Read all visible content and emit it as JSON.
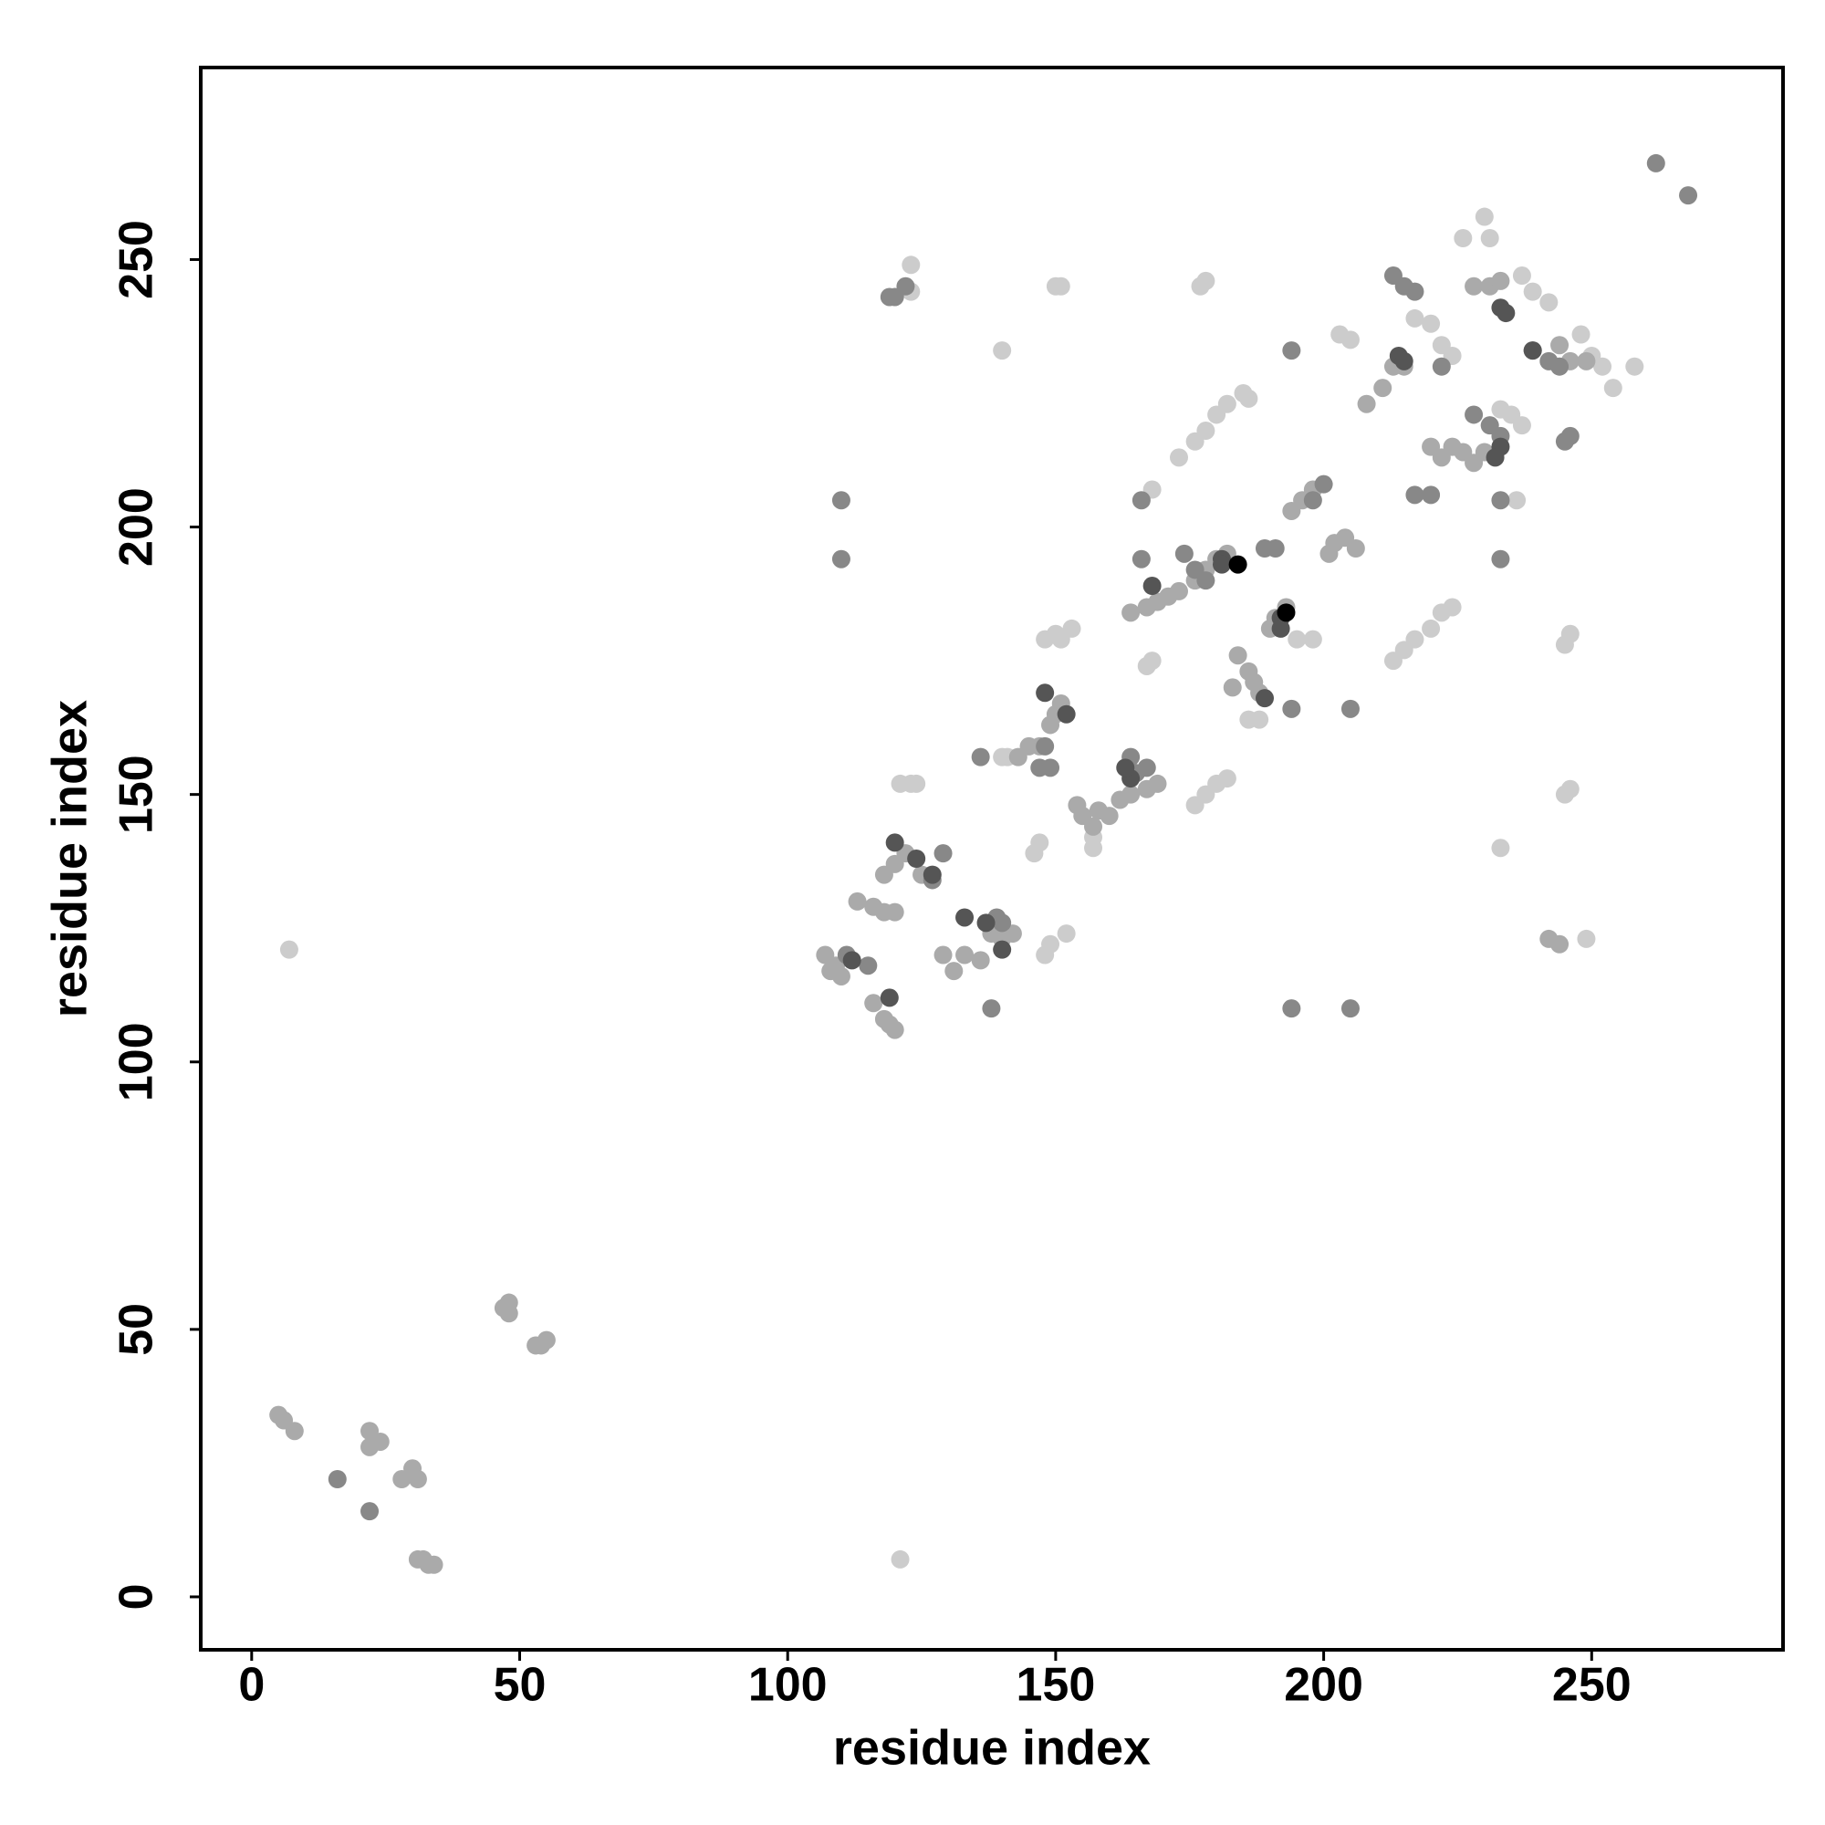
{
  "chart_data": {
    "type": "scatter",
    "x_label": "residue index",
    "y_label": "residue index",
    "xlim": [
      -9.5,
      285.7
    ],
    "ylim": [
      -9.9,
      285.9
    ],
    "xticks": [
      0,
      50,
      100,
      150,
      200,
      250
    ],
    "yticks": [
      0,
      50,
      100,
      150,
      200,
      250
    ],
    "series": [
      {
        "color": "#cccccc",
        "x": [
          7,
          121,
          140,
          151,
          150,
          178,
          177,
          233,
          230,
          231,
          226,
          258,
          254,
          249,
          246,
          245,
          246,
          245,
          123,
          123,
          121,
          123,
          124,
          152,
          149,
          148,
          146,
          147,
          148,
          150,
          151,
          153,
          168,
          167,
          168,
          173,
          176,
          178,
          180,
          182,
          185,
          186,
          176,
          178,
          180,
          182,
          213,
          215,
          217,
          220,
          222,
          224,
          203,
          205,
          217,
          220,
          222,
          224,
          237,
          239,
          242,
          248,
          250,
          252,
          237,
          235,
          233,
          236,
          141,
          140,
          157,
          157,
          186,
          188,
          195,
          198
        ],
        "y": [
          121,
          7,
          233,
          245,
          245,
          246,
          245,
          140,
          258,
          254,
          254,
          230,
          226,
          123,
          180,
          178,
          151,
          150,
          249,
          244,
          152,
          152,
          152,
          124,
          122,
          120,
          139,
          141,
          179,
          180,
          179,
          181,
          207,
          174,
          175,
          213,
          216,
          218,
          221,
          223,
          225,
          224,
          148,
          150,
          152,
          153,
          175,
          177,
          179,
          181,
          184,
          185,
          236,
          235,
          239,
          238,
          234,
          232,
          247,
          244,
          242,
          236,
          232,
          230,
          219,
          221,
          222,
          205,
          157,
          157,
          140,
          142,
          164,
          164,
          179,
          179
        ]
      },
      {
        "color": "#aaaaaa",
        "x": [
          6,
          8,
          5,
          22,
          22,
          24,
          30,
          31,
          28,
          31,
          32,
          33,
          34,
          48,
          48,
          47,
          53,
          54,
          55,
          109,
          107,
          110,
          108,
          116,
          118,
          119,
          120,
          113,
          116,
          118,
          120,
          118,
          120,
          122,
          125,
          129,
          131,
          133,
          136,
          138,
          140,
          142,
          143,
          145,
          147,
          149,
          150,
          151,
          154,
          155,
          157,
          158,
          160,
          162,
          164,
          167,
          169,
          164,
          167,
          169,
          171,
          173,
          176,
          178,
          180,
          182,
          184,
          186,
          187,
          188,
          183,
          190,
          191,
          193,
          194,
          196,
          198,
          201,
          202,
          204,
          206,
          208,
          211,
          213,
          215,
          224,
          226,
          228,
          230,
          228,
          231,
          233,
          244,
          246,
          249,
          220,
          222,
          242,
          244
        ],
        "y": [
          33,
          31,
          34,
          31,
          28,
          29,
          24,
          22,
          22,
          7,
          7,
          6,
          6,
          55,
          53,
          54,
          47,
          47,
          48,
          118,
          120,
          116,
          117,
          111,
          108,
          107,
          106,
          130,
          129,
          128,
          128,
          135,
          137,
          139,
          135,
          120,
          117,
          120,
          119,
          124,
          123,
          124,
          157,
          159,
          159,
          163,
          165,
          167,
          148,
          146,
          144,
          147,
          146,
          149,
          150,
          151,
          152,
          184,
          185,
          186,
          187,
          188,
          190,
          192,
          194,
          195,
          176,
          173,
          171,
          169,
          170,
          181,
          183,
          185,
          203,
          205,
          207,
          195,
          197,
          198,
          196,
          223,
          226,
          230,
          230,
          215,
          214,
          212,
          214,
          245,
          245,
          246,
          234,
          231,
          231,
          215,
          213,
          123,
          122
        ]
      },
      {
        "color": "#888888",
        "x": [
          110,
          110,
          194,
          194,
          205,
          138,
          262,
          268,
          136,
          119,
          120,
          122,
          148,
          149,
          147,
          164,
          165,
          167,
          174,
          176,
          178,
          189,
          191,
          198,
          200,
          213,
          215,
          217,
          228,
          231,
          233,
          239,
          242,
          244,
          205,
          194,
          166,
          166,
          233,
          233,
          16,
          22,
          246,
          245,
          129,
          127,
          111,
          115,
          139,
          140,
          220,
          217,
          222
        ],
        "y": [
          205,
          194,
          233,
          110,
          110,
          110,
          268,
          262,
          157,
          243,
          243,
          245,
          159,
          155,
          155,
          157,
          154,
          155,
          195,
          192,
          190,
          196,
          196,
          205,
          208,
          247,
          245,
          244,
          221,
          219,
          217,
          233,
          231,
          230,
          166,
          166,
          205,
          194,
          194,
          205,
          22,
          16,
          217,
          216,
          139,
          134,
          120,
          118,
          127,
          126,
          206,
          206,
          230
        ]
      },
      {
        "color": "#555555",
        "x": [
          120,
          124,
          127,
          133,
          137,
          140,
          112,
          119,
          148,
          152,
          164,
          163,
          168,
          181,
          181,
          189,
          192,
          192,
          214,
          215,
          233,
          232,
          233,
          234,
          239
        ],
        "y": [
          141,
          138,
          135,
          127,
          126,
          121,
          119,
          112,
          169,
          165,
          153,
          155,
          189,
          194,
          193,
          168,
          183,
          181,
          232,
          231,
          215,
          213,
          241,
          240,
          233
        ]
      },
      {
        "color": "#000000",
        "x": [
          184,
          193
        ],
        "y": [
          193,
          184
        ]
      }
    ]
  }
}
